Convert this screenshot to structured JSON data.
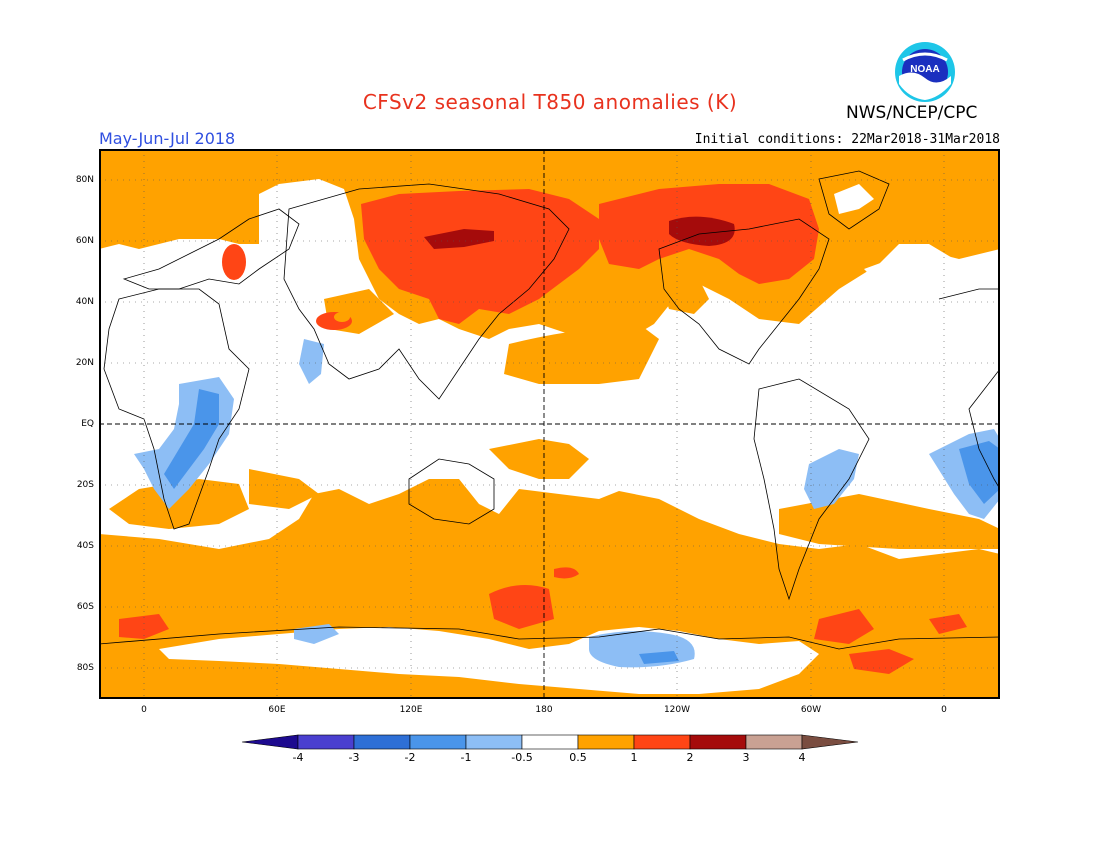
{
  "title": "CFSv2 seasonal T850 anomalies (K)",
  "season": "May-Jun-Jul 2018",
  "initial_conditions": "Initial conditions: 22Mar2018-31Mar2018",
  "agency": "NWS/NCEP/CPC",
  "logo_text": "NOAA",
  "lat_labels": [
    "80N",
    "60N",
    "40N",
    "20N",
    "EQ",
    "20S",
    "40S",
    "60S",
    "80S"
  ],
  "lon_labels": [
    "0",
    "60E",
    "120E",
    "180",
    "120W",
    "60W",
    "0"
  ],
  "colorbar": {
    "labels": [
      "-4",
      "-3",
      "-2",
      "-1",
      "-0.5",
      "0.5",
      "1",
      "2",
      "3",
      "4"
    ],
    "colors": [
      "#1d0a8f",
      "#4a3fcf",
      "#2e6fd6",
      "#4a95ea",
      "#8dbef5",
      "#ffffff",
      "#ffa200",
      "#ff4515",
      "#a50b0b",
      "#c9a193",
      "#7a4d40"
    ]
  },
  "colors": {
    "weak_warm": "#ffa200",
    "warm": "#ff4515",
    "strong_warm": "#a50b0b",
    "weak_cool": "#8dbef5",
    "cool": "#4a95ea",
    "title": "#e8321e",
    "season": "#2f4fe0"
  }
}
